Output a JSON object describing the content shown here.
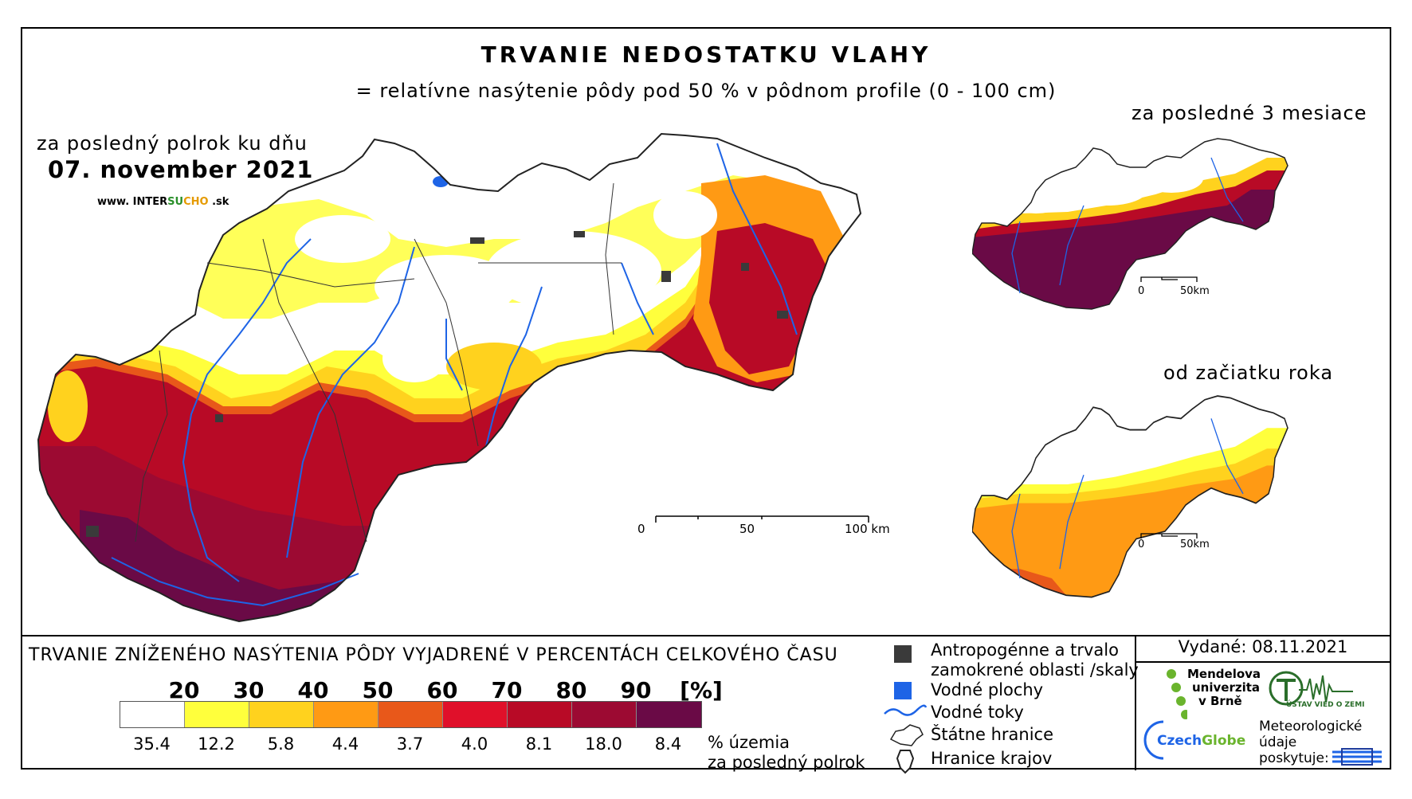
{
  "title": "TRVANIE NEDOSTATKU VLAHY",
  "subtitle": "= relatívne nasýtenie pôdy pod 50 % v pôdnom profile (0 - 100 cm)",
  "main_map": {
    "period": "za posledný polrok ku dňu",
    "date": "07. november 2021",
    "website_prefix": "www. INTER",
    "website_a": "SU",
    "website_b": "CHO",
    "website_suffix": " .sk",
    "scale": {
      "l0": "0",
      "l1": "50",
      "l2": "100 km"
    }
  },
  "inset_top": {
    "title": "za posledné 3 mesiace",
    "scale": {
      "l0": "0",
      "l1": "50km"
    }
  },
  "inset_bottom": {
    "title": "od začiatku roka",
    "scale": {
      "l0": "0",
      "l1": "50km"
    }
  },
  "legend": {
    "title": "TRVANIE ZNÍŽENÉHO NASÝTENIA PÔDY VYJADRENÉ V PERCENTÁCH CELKOVÉHO ČASU",
    "class_breaks": [
      "20",
      "30",
      "40",
      "50",
      "60",
      "70",
      "80",
      "90"
    ],
    "unit": "[%]",
    "colors": [
      "#ffffff",
      "#ffff3c",
      "#ffd21e",
      "#ff9a14",
      "#e8581a",
      "#e0102a",
      "#b80a26",
      "#9c0a32",
      "#6a0a46"
    ],
    "area_percent": [
      "35.4",
      "12.2",
      "5.8",
      "4.4",
      "3.7",
      "4.0",
      "8.1",
      "18.0",
      "8.4"
    ],
    "area_label_1": "% územia",
    "area_label_2": "za posledný polrok"
  },
  "map_key": {
    "anthropogenic_1": "Antropogénne a trvalo",
    "anthropogenic_2": "zamokrené oblasti /skaly",
    "water_bodies": "Vodné plochy",
    "streams": "Vodné toky",
    "state_border": "Štátne hranice",
    "region_border": "Hranice krajov",
    "colors": {
      "anthropogenic": "#3a3a3a",
      "water": "#1e64e6",
      "stream": "#1e64e6"
    }
  },
  "issued": "Vydané: 08.11.2021",
  "logos": {
    "mendel_1": "Mendelova",
    "mendel_2": "univerzita",
    "mendel_3": "v Brně",
    "czechglobe_a": "Czech",
    "czechglobe_b": "Globe",
    "ustav": "ÚSTAV VIED O ZEMI",
    "shmu_1": "Meteorologické",
    "shmu_2": "údaje",
    "shmu_3": "poskytuje:"
  }
}
